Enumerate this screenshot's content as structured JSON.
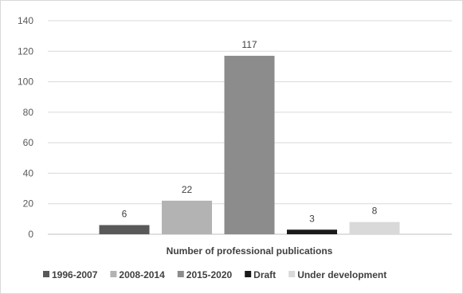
{
  "chart_data": {
    "type": "bar",
    "title": "",
    "xlabel": "Number of professional publications",
    "ylabel": "",
    "ylim": [
      0,
      140
    ],
    "yticks": [
      0,
      20,
      40,
      60,
      80,
      100,
      120,
      140
    ],
    "grid": true,
    "legend_position": "bottom",
    "series": [
      {
        "name": "1996-2007",
        "value": 6,
        "color": "#595959"
      },
      {
        "name": "2008-2014",
        "value": 22,
        "color": "#b3b3b3"
      },
      {
        "name": "2015-2020",
        "value": 117,
        "color": "#8c8c8c"
      },
      {
        "name": "Draft",
        "value": 3,
        "color": "#1a1a1a"
      },
      {
        "name": "Under development",
        "value": 8,
        "color": "#d9d9d9"
      }
    ]
  }
}
